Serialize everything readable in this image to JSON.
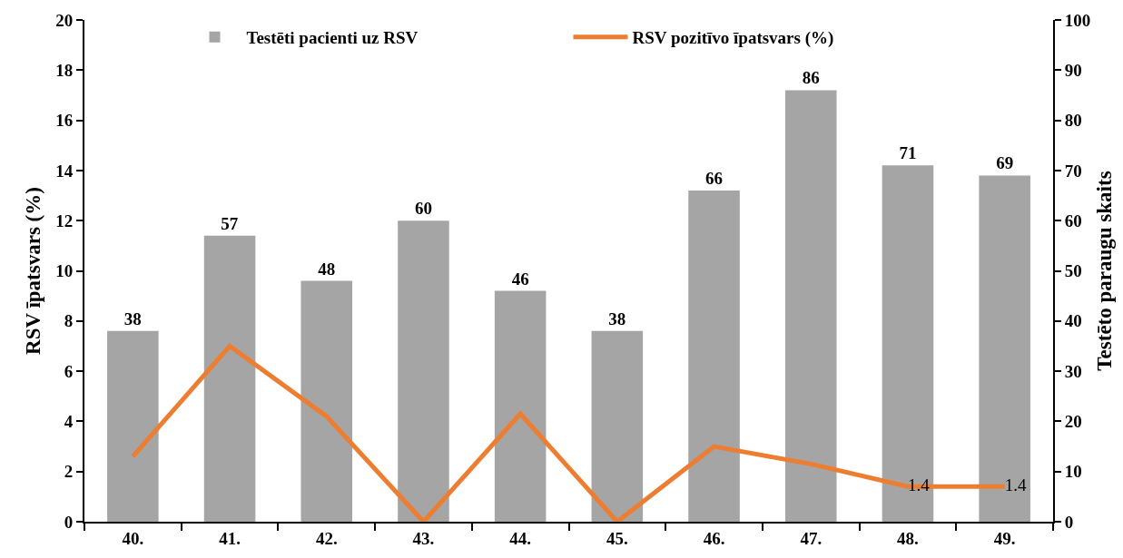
{
  "chart_data": {
    "type": "bar",
    "categories": [
      "40.",
      "41.",
      "42.",
      "43.",
      "44.",
      "45.",
      "46.",
      "47.",
      "48.",
      "49."
    ],
    "ylabel": "RSV īpatsvars (%)",
    "y2label": "Testēto paraugu skaits",
    "ylim": [
      0,
      20
    ],
    "yticks": [
      0,
      2,
      4,
      6,
      8,
      10,
      12,
      14,
      16,
      18,
      20
    ],
    "y2lim": [
      0,
      100
    ],
    "y2ticks": [
      0,
      10,
      20,
      30,
      40,
      50,
      60,
      70,
      80,
      90,
      100
    ],
    "legend": "top",
    "series": [
      {
        "name": "Testēti pacienti uz RSV",
        "axis": "y2",
        "color": "#a5a5a5",
        "values": [
          38,
          57,
          48,
          60,
          46,
          38,
          66,
          86,
          71,
          69
        ],
        "value_labels": [
          "38",
          "57",
          "48",
          "60",
          "46",
          "38",
          "66",
          "86",
          "71",
          "69"
        ]
      },
      {
        "name": "RSV pozitīvo īpatsvars (%)",
        "type": "line",
        "color": "#ed7d31",
        "values": [
          2.6,
          7.0,
          4.2,
          0,
          4.3,
          0,
          3.0,
          2.3,
          1.4,
          1.4
        ],
        "value_labels": [
          null,
          null,
          null,
          null,
          null,
          null,
          null,
          null,
          "1.4",
          "1.4"
        ]
      }
    ]
  }
}
